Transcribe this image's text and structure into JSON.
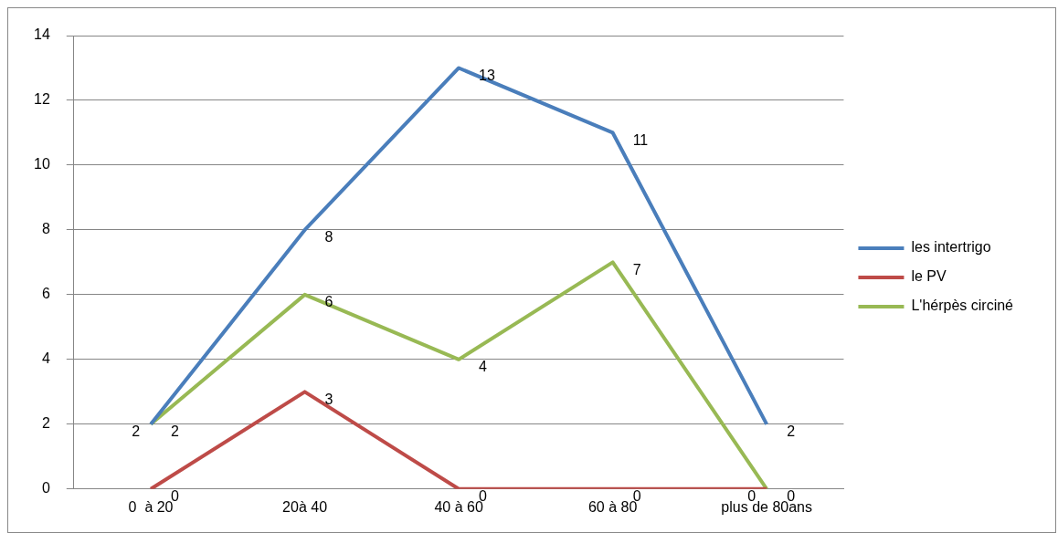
{
  "chart_data": {
    "type": "line",
    "categories": [
      "0  à 20",
      "20à 40",
      "40 à 60",
      "60 à 80",
      "plus de 80ans"
    ],
    "series": [
      {
        "name": "les intertrigo",
        "color": "#4a7ebb",
        "values": [
          2,
          8,
          13,
          11,
          2
        ]
      },
      {
        "name": "le PV",
        "color": "#be4b48",
        "values": [
          0,
          3,
          0,
          0,
          0
        ]
      },
      {
        "name": "L'hérpès circiné",
        "color": "#98b954",
        "values": [
          2,
          6,
          4,
          7,
          0
        ]
      }
    ],
    "ylim": [
      0,
      14
    ],
    "yticks": [
      0,
      2,
      4,
      6,
      8,
      10,
      12,
      14
    ],
    "grid": "y",
    "legend": "right",
    "marker": "none",
    "line_style": "solid",
    "data_labels": true
  }
}
